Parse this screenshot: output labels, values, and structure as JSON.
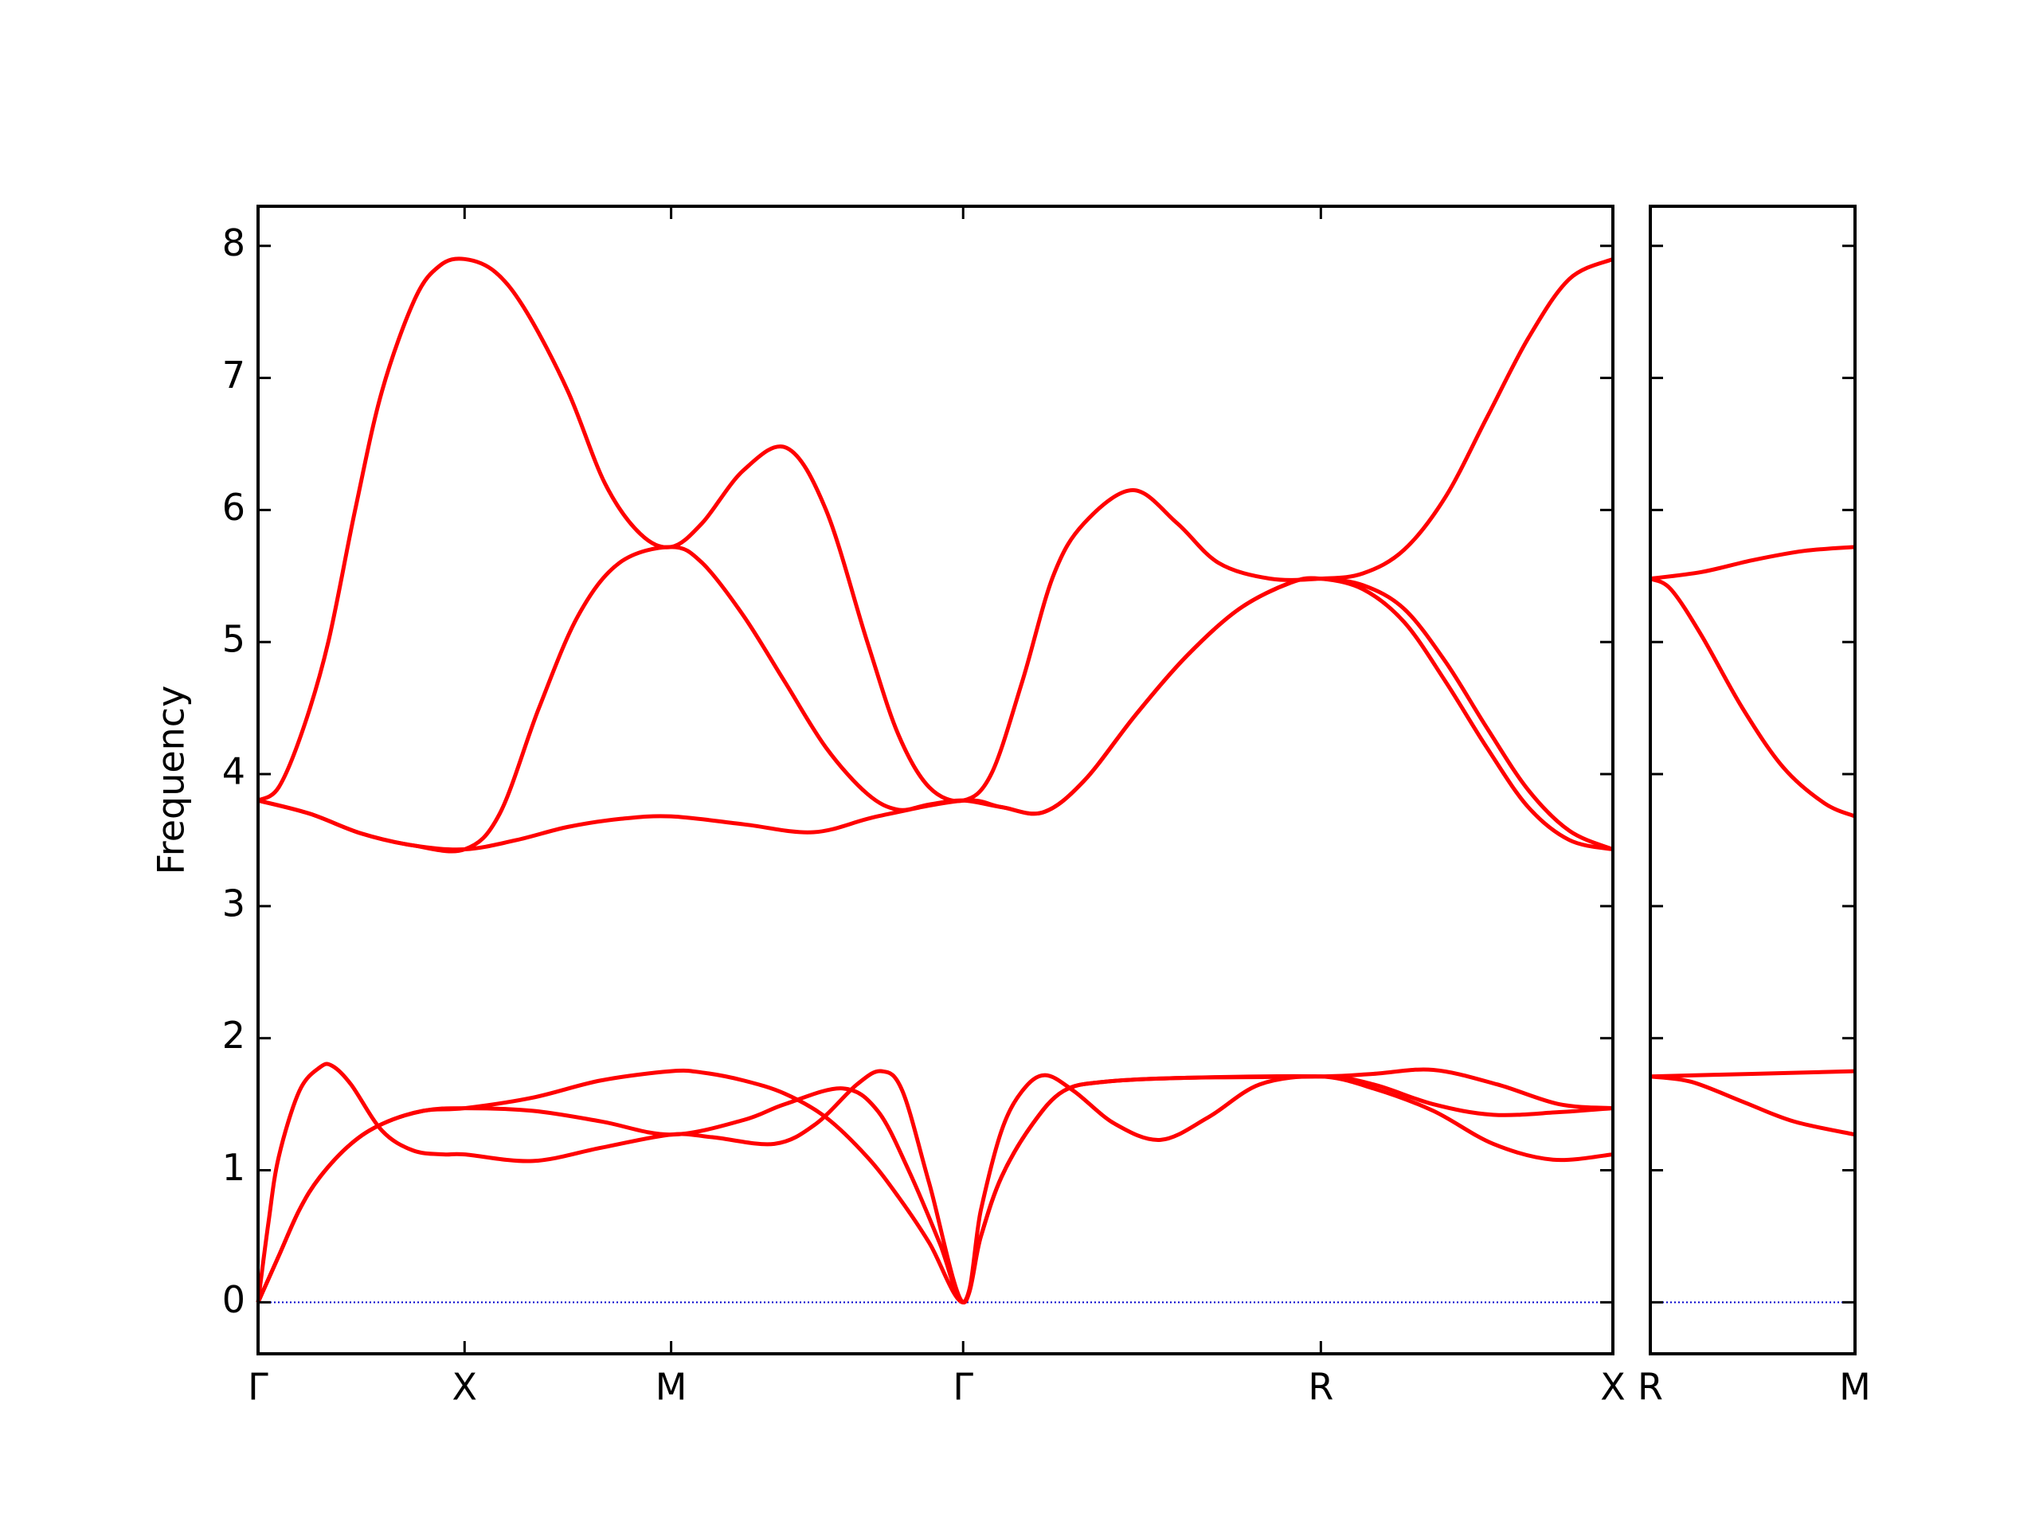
{
  "chart_data": [
    {
      "type": "line",
      "y_label": "Frequency",
      "xlim": [
        0,
        6.56
      ],
      "xticks": [
        {
          "value": 0,
          "label": "Γ"
        },
        {
          "value": 1,
          "label": "X"
        },
        {
          "value": 2,
          "label": "M"
        },
        {
          "value": 3.414,
          "label": "Γ"
        },
        {
          "value": 5.146,
          "label": "R"
        },
        {
          "value": 6.56,
          "label": "X"
        }
      ],
      "ylim": [
        -0.39,
        8.3
      ],
      "yticks": [
        0,
        1,
        2,
        3,
        4,
        5,
        6,
        7,
        8
      ],
      "ytick_labels": true,
      "zero_line": true,
      "series": [
        {
          "color": "#ff0000",
          "x": [
            0,
            0.1,
            0.2,
            0.3,
            0.45,
            0.6,
            0.8,
            1,
            1.33,
            1.66,
            2,
            2.35,
            2.55,
            2.83,
            3.0,
            3.15,
            3.3,
            3.414,
            3.5,
            3.6,
            3.75,
            3.9,
            4.1,
            4.5,
            5.146,
            5.4,
            5.69,
            5.98,
            6.3,
            6.56
          ],
          "values": [
            0,
            0.35,
            0.7,
            0.95,
            1.2,
            1.35,
            1.45,
            1.47,
            1.45,
            1.37,
            1.27,
            1.38,
            1.5,
            1.62,
            1.45,
            1.0,
            0.45,
            0,
            0.5,
            0.95,
            1.35,
            1.6,
            1.67,
            1.7,
            1.71,
            1.65,
            1.5,
            1.42,
            1.44,
            1.47
          ]
        },
        {
          "color": "#ff0000",
          "x": [
            0,
            0.1,
            0.2,
            0.3,
            0.45,
            0.6,
            0.8,
            1,
            1.33,
            1.66,
            2,
            2.15,
            2.35,
            2.55,
            2.75,
            2.95,
            3.1,
            3.25,
            3.414,
            3.5,
            3.6,
            3.75,
            3.9,
            4.1,
            4.5,
            5.146,
            5.4,
            5.69,
            6.0,
            6.3,
            6.56
          ],
          "values": [
            0,
            0.35,
            0.7,
            0.95,
            1.2,
            1.35,
            1.45,
            1.47,
            1.55,
            1.68,
            1.75,
            1.74,
            1.68,
            1.58,
            1.4,
            1.1,
            0.8,
            0.45,
            0,
            0.5,
            0.95,
            1.35,
            1.6,
            1.67,
            1.7,
            1.71,
            1.73,
            1.76,
            1.65,
            1.5,
            1.47
          ]
        },
        {
          "color": "#ff0000",
          "x": [
            0,
            0.05,
            0.1,
            0.2,
            0.3,
            0.36,
            0.45,
            0.6,
            0.75,
            0.9,
            1,
            1.33,
            1.66,
            2,
            2.2,
            2.5,
            2.7,
            2.9,
            3.02,
            3.12,
            3.25,
            3.414,
            3.5,
            3.6,
            3.7,
            3.81,
            3.95,
            4.15,
            4.37,
            4.6,
            4.85,
            5.146,
            5.4,
            5.69,
            5.98,
            6.27,
            6.56
          ],
          "values": [
            0,
            0.6,
            1.1,
            1.6,
            1.78,
            1.79,
            1.65,
            1.3,
            1.15,
            1.12,
            1.12,
            1.07,
            1.17,
            1.27,
            1.25,
            1.2,
            1.35,
            1.65,
            1.75,
            1.6,
            0.9,
            0,
            0.7,
            1.3,
            1.6,
            1.72,
            1.6,
            1.35,
            1.23,
            1.4,
            1.65,
            1.71,
            1.62,
            1.45,
            1.2,
            1.08,
            1.12
          ]
        },
        {
          "color": "#ff0000",
          "x": [
            0,
            0.25,
            0.5,
            0.75,
            1,
            1.25,
            1.5,
            1.75,
            2,
            2.35,
            2.69,
            3.0,
            3.414,
            3.6,
            3.8,
            4.0,
            4.25,
            4.5,
            4.75,
            5.0,
            5.146,
            5.35,
            5.55,
            5.75,
            5.95,
            6.15,
            6.35,
            6.56
          ],
          "values": [
            3.8,
            3.7,
            3.55,
            3.46,
            3.43,
            3.5,
            3.6,
            3.66,
            3.68,
            3.62,
            3.56,
            3.68,
            3.8,
            3.75,
            3.71,
            3.95,
            4.45,
            4.9,
            5.25,
            5.45,
            5.48,
            5.4,
            5.15,
            4.7,
            4.2,
            3.75,
            3.5,
            3.43
          ]
        },
        {
          "color": "#ff0000",
          "x": [
            0,
            0.25,
            0.5,
            0.75,
            1,
            1.17,
            1.36,
            1.55,
            1.75,
            2,
            2.15,
            2.35,
            2.55,
            2.75,
            2.95,
            3.1,
            3.25,
            3.414,
            3.6,
            3.8,
            4.0,
            4.25,
            4.5,
            4.75,
            5.0,
            5.146,
            5.35,
            5.55,
            5.75,
            5.95,
            6.15,
            6.35,
            6.56
          ],
          "values": [
            3.8,
            3.7,
            3.55,
            3.46,
            3.43,
            3.7,
            4.5,
            5.2,
            5.6,
            5.72,
            5.6,
            5.2,
            4.7,
            4.2,
            3.85,
            3.73,
            3.77,
            3.8,
            3.75,
            3.71,
            3.95,
            4.45,
            4.9,
            5.25,
            5.45,
            5.48,
            5.43,
            5.25,
            4.85,
            4.35,
            3.88,
            3.57,
            3.43
          ]
        },
        {
          "color": "#ff0000",
          "x": [
            0,
            0.1,
            0.22,
            0.34,
            0.47,
            0.6,
            0.76,
            0.88,
            1,
            1.15,
            1.3,
            1.5,
            1.68,
            1.85,
            2,
            2.15,
            2.35,
            2.56,
            2.75,
            2.95,
            3.1,
            3.25,
            3.414,
            3.55,
            3.7,
            3.85,
            4.0,
            4.236,
            4.45,
            4.65,
            4.9,
            5.146,
            5.35,
            5.55,
            5.75,
            5.95,
            6.15,
            6.35,
            6.56
          ],
          "values": [
            3.8,
            3.9,
            4.35,
            5.0,
            6.0,
            6.9,
            7.6,
            7.85,
            7.9,
            7.8,
            7.5,
            6.9,
            6.2,
            5.82,
            5.72,
            5.9,
            6.3,
            6.47,
            6.0,
            5.0,
            4.3,
            3.9,
            3.8,
            4.0,
            4.7,
            5.5,
            5.9,
            6.15,
            5.9,
            5.6,
            5.48,
            5.48,
            5.52,
            5.7,
            6.1,
            6.7,
            7.3,
            7.75,
            7.9
          ]
        }
      ]
    },
    {
      "type": "line",
      "xlim": [
        0,
        1
      ],
      "xticks": [
        {
          "value": 0,
          "label": "R"
        },
        {
          "value": 1,
          "label": "M"
        }
      ],
      "ylim": [
        -0.39,
        8.3
      ],
      "yticks": [
        0,
        1,
        2,
        3,
        4,
        5,
        6,
        7,
        8
      ],
      "ytick_labels": false,
      "zero_line": true,
      "series": [
        {
          "color": "#ff0000",
          "x": [
            0,
            0.25,
            0.5,
            0.75,
            1
          ],
          "values": [
            5.48,
            5.53,
            5.62,
            5.69,
            5.72
          ]
        },
        {
          "color": "#ff0000",
          "x": [
            0,
            0.1,
            0.25,
            0.45,
            0.65,
            0.85,
            1
          ],
          "values": [
            5.48,
            5.4,
            5.05,
            4.5,
            4.05,
            3.78,
            3.68
          ]
        },
        {
          "color": "#ff0000",
          "x": [
            0,
            0.5,
            1
          ],
          "values": [
            1.71,
            1.73,
            1.75
          ]
        },
        {
          "color": "#ff0000",
          "x": [
            0,
            0.2,
            0.45,
            0.7,
            1
          ],
          "values": [
            1.71,
            1.67,
            1.52,
            1.37,
            1.27
          ]
        }
      ]
    }
  ]
}
